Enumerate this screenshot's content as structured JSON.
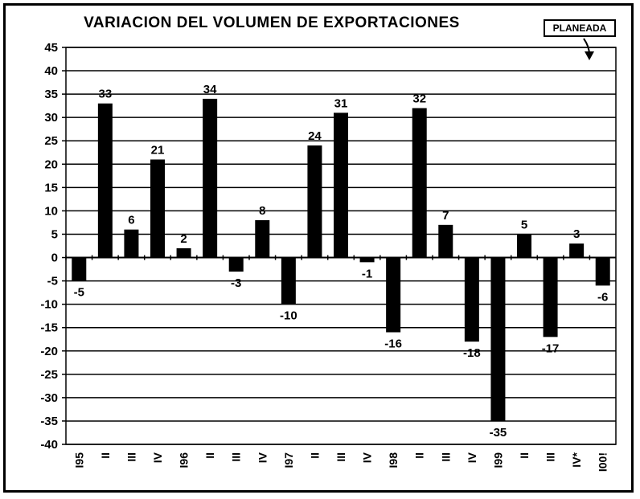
{
  "chart_data": {
    "type": "bar",
    "title": "VARIACION DEL VOLUMEN DE EXPORTACIONES",
    "annotation": "PLANEADA",
    "xlabel": "",
    "ylabel": "",
    "ylim": [
      -40,
      45
    ],
    "yticks": [
      45,
      40,
      35,
      30,
      25,
      20,
      15,
      10,
      5,
      0,
      -5,
      -10,
      -15,
      -20,
      -25,
      -30,
      -35,
      -40
    ],
    "grid": true,
    "categories": [
      "I95",
      "II",
      "III",
      "IV",
      "I96",
      "II",
      "III",
      "IV",
      "I97",
      "II",
      "III",
      "IV",
      "I98",
      "II",
      "III",
      "IV",
      "I99",
      "II",
      "III",
      "IV*",
      "I00!"
    ],
    "values": [
      -5,
      33,
      6,
      21,
      2,
      34,
      -3,
      8,
      -10,
      24,
      31,
      -1,
      -16,
      32,
      7,
      -18,
      -35,
      5,
      -17,
      3,
      -6
    ],
    "bar_color": "#000000"
  }
}
